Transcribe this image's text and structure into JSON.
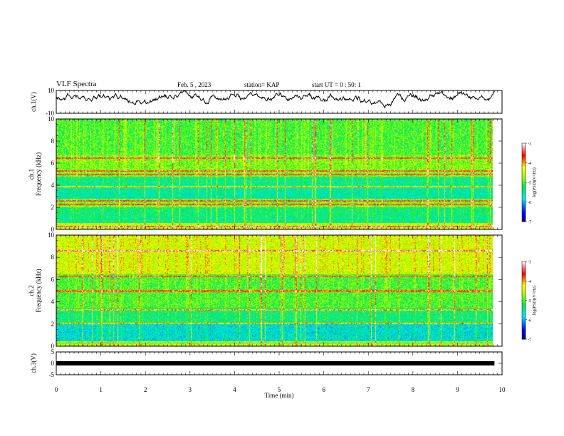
{
  "header": {
    "title": "VLF Spectra",
    "date": "Feb. 5 , 2023",
    "station": "station= KAP",
    "start": "start UT = 0 : 50: 1"
  },
  "chart_data": [
    {
      "type": "line",
      "panel": "ch1-waveform",
      "ylabel": "ch.1(V)",
      "ylim": [
        -10,
        10
      ],
      "yticks": [
        "10",
        "-10"
      ],
      "x_range_min": [
        0,
        9.83
      ],
      "approx_level_V": 3
    },
    {
      "type": "heatmap",
      "panel": "ch1-spectrogram",
      "ylabel": "ch.1 Frequency (kHz)",
      "ylim": [
        0,
        10
      ],
      "yticks": [
        "0",
        "2",
        "4",
        "6",
        "8",
        "10"
      ],
      "x_range_min": [
        0,
        9.83
      ],
      "strong_lines_kHz": [
        0.3,
        2.3,
        2.6,
        3.9,
        5.0,
        5.3,
        6.5
      ]
    },
    {
      "type": "heatmap",
      "panel": "ch2-spectrogram",
      "ylabel": "ch.2 Frequency (kHz)",
      "ylim": [
        0,
        10
      ],
      "yticks": [
        "0",
        "2",
        "4",
        "6",
        "8",
        "10"
      ],
      "x_range_min": [
        0,
        9.83
      ],
      "strong_lines_kHz": [
        0.4,
        2.1,
        3.3,
        5.0,
        6.3,
        8.6
      ]
    },
    {
      "type": "line",
      "panel": "ch3-waveform",
      "ylabel": "ch.3(V)",
      "ylim": [
        -5,
        5
      ],
      "yticks": [
        "5",
        "0",
        "-5"
      ],
      "x_range_min": [
        0,
        9.83
      ],
      "approx_level_V": 0
    }
  ],
  "x_axis": {
    "label": "Time (min)",
    "ticks": [
      "0",
      "1",
      "2",
      "3",
      "4",
      "5",
      "6",
      "7",
      "8",
      "9",
      "10"
    ],
    "range": [
      0,
      10
    ]
  },
  "colorbar": {
    "label": "log(PSD)(V²/Hz)",
    "ticks": [
      "-3",
      "-4",
      "-5",
      "-6",
      "-7"
    ],
    "range": [
      -7,
      -3
    ],
    "colors": [
      "#000080",
      "#0000ff",
      "#00ffff",
      "#00ff00",
      "#ffff00",
      "#ff0000",
      "#ffffff"
    ]
  }
}
